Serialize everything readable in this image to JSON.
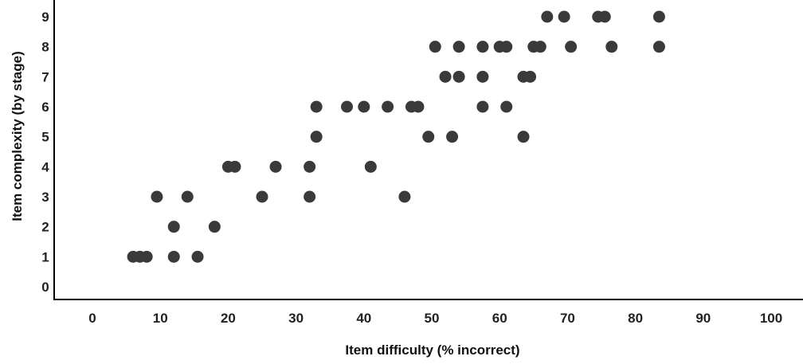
{
  "chart_data": {
    "type": "scatter",
    "title": "",
    "xlabel": "Item difficulty (% incorrect)",
    "ylabel": "Item complexity (by stage)",
    "xlim": [
      0,
      100
    ],
    "ylim": [
      0,
      9
    ],
    "x_ticks": [
      0,
      10,
      20,
      30,
      40,
      50,
      60,
      70,
      80,
      90,
      100
    ],
    "y_ticks": [
      0,
      1,
      2,
      3,
      4,
      5,
      6,
      7,
      8,
      9
    ],
    "grid": false,
    "marker_color": "#3a3a3a",
    "points": [
      {
        "x": 6,
        "y": 1
      },
      {
        "x": 7,
        "y": 1
      },
      {
        "x": 8,
        "y": 1
      },
      {
        "x": 12,
        "y": 1
      },
      {
        "x": 15.5,
        "y": 1
      },
      {
        "x": 12,
        "y": 2
      },
      {
        "x": 18,
        "y": 2
      },
      {
        "x": 9.5,
        "y": 3
      },
      {
        "x": 14,
        "y": 3
      },
      {
        "x": 25,
        "y": 3
      },
      {
        "x": 32,
        "y": 3
      },
      {
        "x": 46,
        "y": 3
      },
      {
        "x": 20,
        "y": 4
      },
      {
        "x": 21,
        "y": 4
      },
      {
        "x": 27,
        "y": 4
      },
      {
        "x": 32,
        "y": 4
      },
      {
        "x": 41,
        "y": 4
      },
      {
        "x": 33,
        "y": 5
      },
      {
        "x": 49.5,
        "y": 5
      },
      {
        "x": 53,
        "y": 5
      },
      {
        "x": 63.5,
        "y": 5
      },
      {
        "x": 33,
        "y": 6
      },
      {
        "x": 37.5,
        "y": 6
      },
      {
        "x": 40,
        "y": 6
      },
      {
        "x": 43.5,
        "y": 6
      },
      {
        "x": 47,
        "y": 6
      },
      {
        "x": 48,
        "y": 6
      },
      {
        "x": 57.5,
        "y": 6
      },
      {
        "x": 61,
        "y": 6
      },
      {
        "x": 52,
        "y": 7
      },
      {
        "x": 54,
        "y": 7
      },
      {
        "x": 57.5,
        "y": 7
      },
      {
        "x": 63.5,
        "y": 7
      },
      {
        "x": 64.5,
        "y": 7
      },
      {
        "x": 50.5,
        "y": 8
      },
      {
        "x": 54,
        "y": 8
      },
      {
        "x": 57.5,
        "y": 8
      },
      {
        "x": 60,
        "y": 8
      },
      {
        "x": 61,
        "y": 8
      },
      {
        "x": 65,
        "y": 8
      },
      {
        "x": 66,
        "y": 8
      },
      {
        "x": 70.5,
        "y": 8
      },
      {
        "x": 76.5,
        "y": 8
      },
      {
        "x": 83.5,
        "y": 8
      },
      {
        "x": 67,
        "y": 9
      },
      {
        "x": 69.5,
        "y": 9
      },
      {
        "x": 74.5,
        "y": 9
      },
      {
        "x": 75.5,
        "y": 9
      },
      {
        "x": 83.5,
        "y": 9
      }
    ]
  }
}
